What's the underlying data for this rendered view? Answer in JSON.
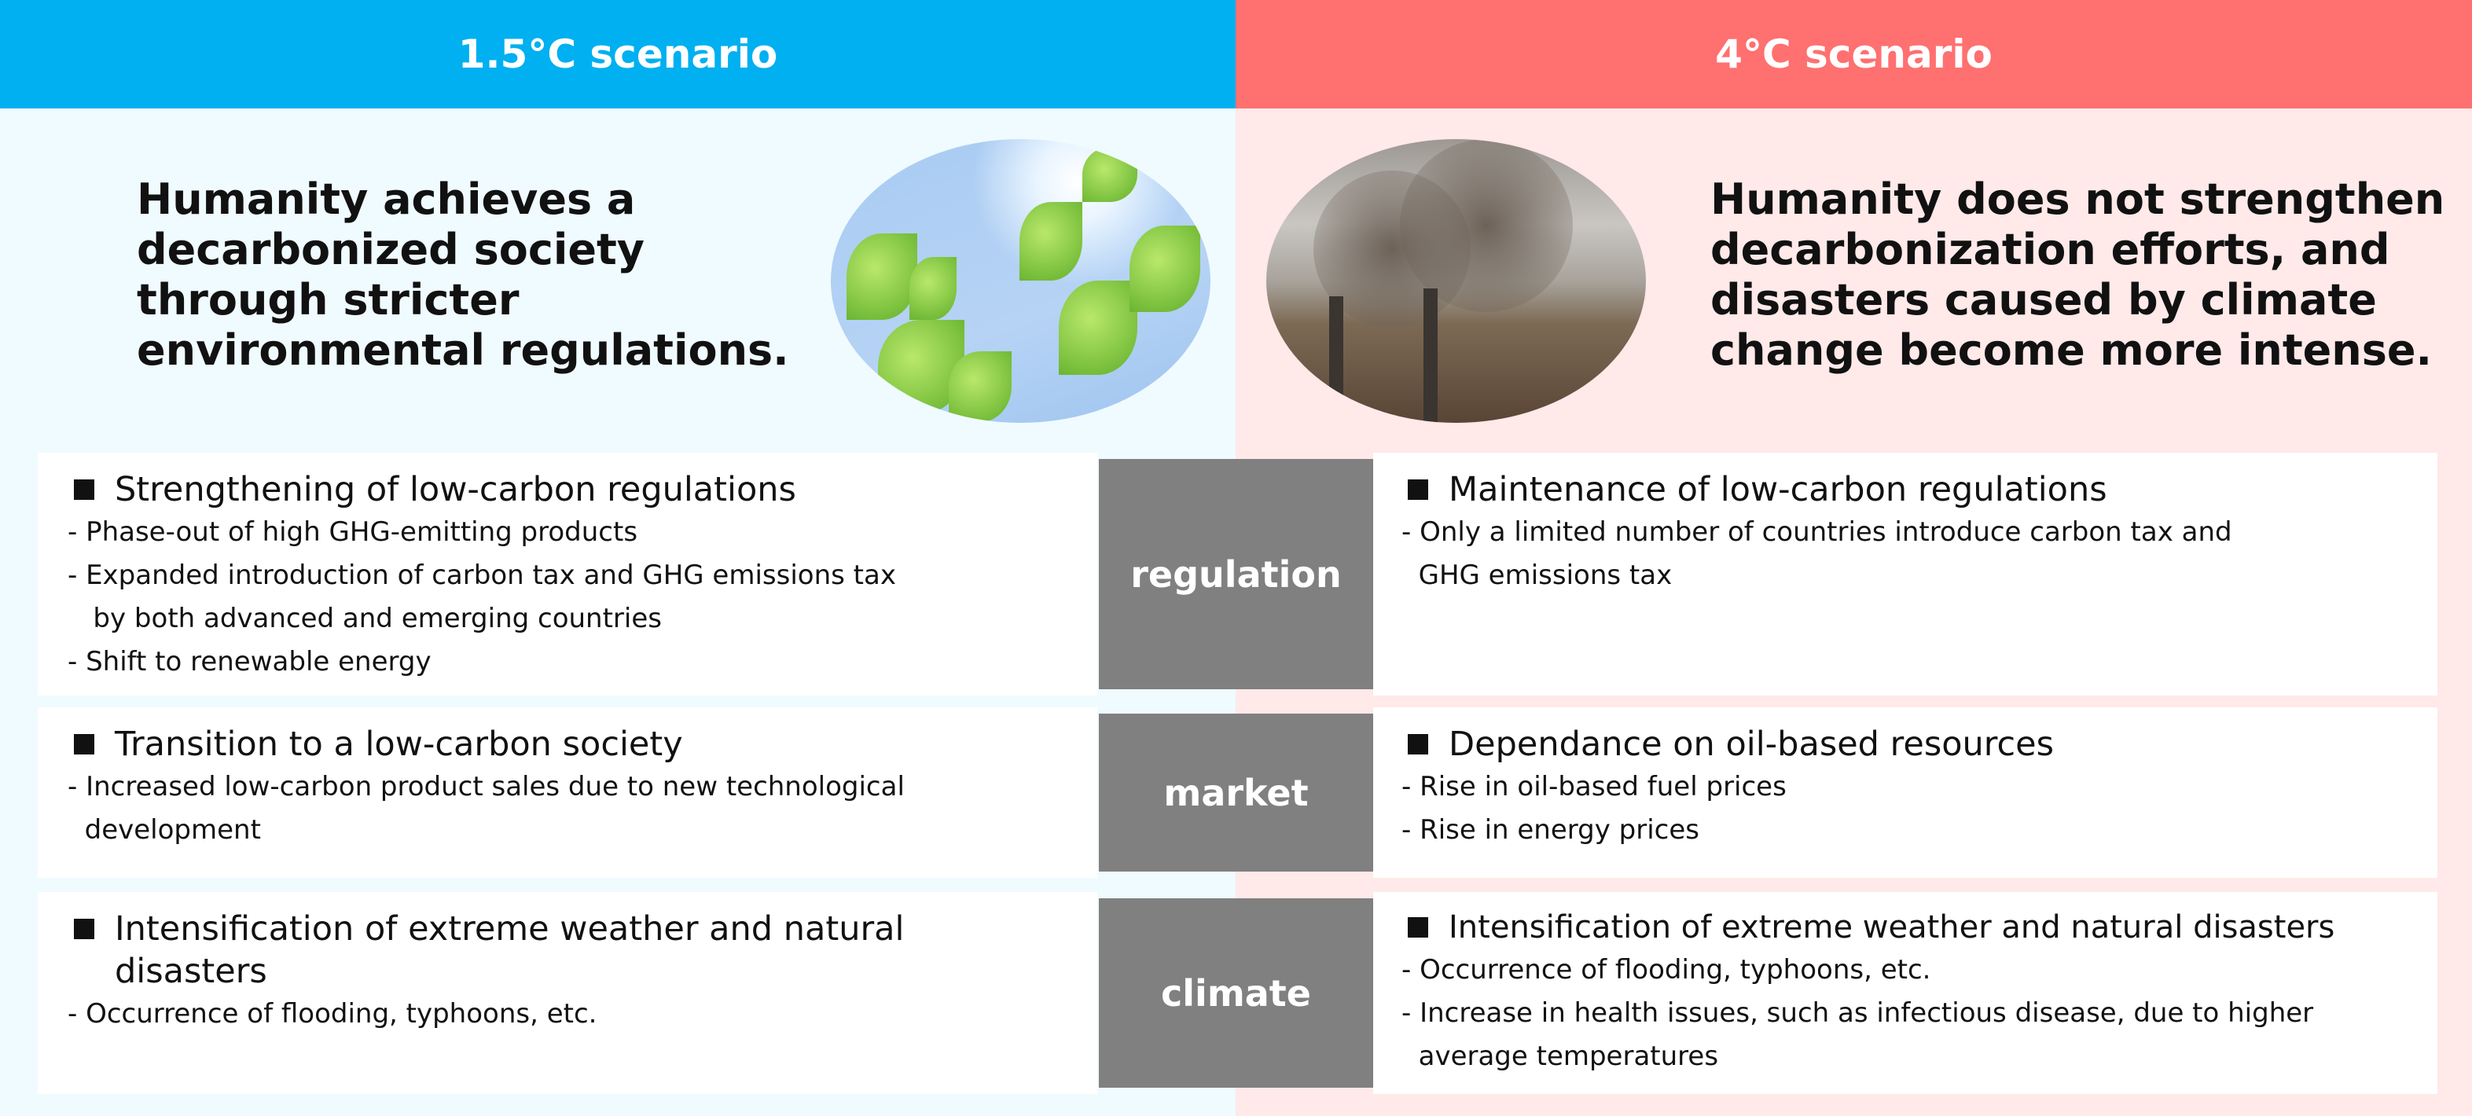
{
  "left": {
    "header": "1.5°C scenario",
    "tagline": [
      "Humanity achieves a",
      "decarbonized society",
      "through stricter",
      "environmental regulations."
    ],
    "image": "green-leaves-sky"
  },
  "right": {
    "header": "4°C scenario",
    "tagline": [
      "Humanity does not strengthen",
      "decarbonization efforts, and",
      "disasters caused by climate",
      "change become more intense."
    ],
    "image": "smokestacks-pollution"
  },
  "colors": {
    "left_header": "#00b0f0",
    "right_header": "#ff7070",
    "category": "#808080"
  },
  "rows": [
    {
      "category": "regulation",
      "left": {
        "heading": "Strengthening of low-carbon regulations",
        "bullets": [
          "- Phase-out of high GHG-emitting products",
          "- Expanded introduction of carbon tax and GHG emissions tax",
          "   by both advanced and emerging countries",
          "- Shift to renewable energy"
        ]
      },
      "right": {
        "heading": "Maintenance of low-carbon regulations",
        "bullets": [
          "- Only a limited number of countries introduce carbon tax and",
          "  GHG emissions tax"
        ]
      }
    },
    {
      "category": "market",
      "left": {
        "heading": "Transition to a low-carbon society",
        "bullets": [
          "- Increased low-carbon product sales due to new technological",
          "  development"
        ]
      },
      "right": {
        "heading": "Dependance on oil-based resources",
        "bullets": [
          "- Rise in oil-based fuel prices",
          "- Rise in energy prices"
        ]
      }
    },
    {
      "category": "climate",
      "left": {
        "heading": "Intensification of extreme weather and natural disasters",
        "bullets": [
          "- Occurrence of flooding, typhoons, etc."
        ]
      },
      "right": {
        "heading": "Intensification of extreme weather and natural disasters",
        "bullets": [
          "- Occurrence of flooding, typhoons, etc.",
          "- Increase in health issues, such as infectious disease, due to higher",
          "  average temperatures"
        ]
      }
    }
  ]
}
